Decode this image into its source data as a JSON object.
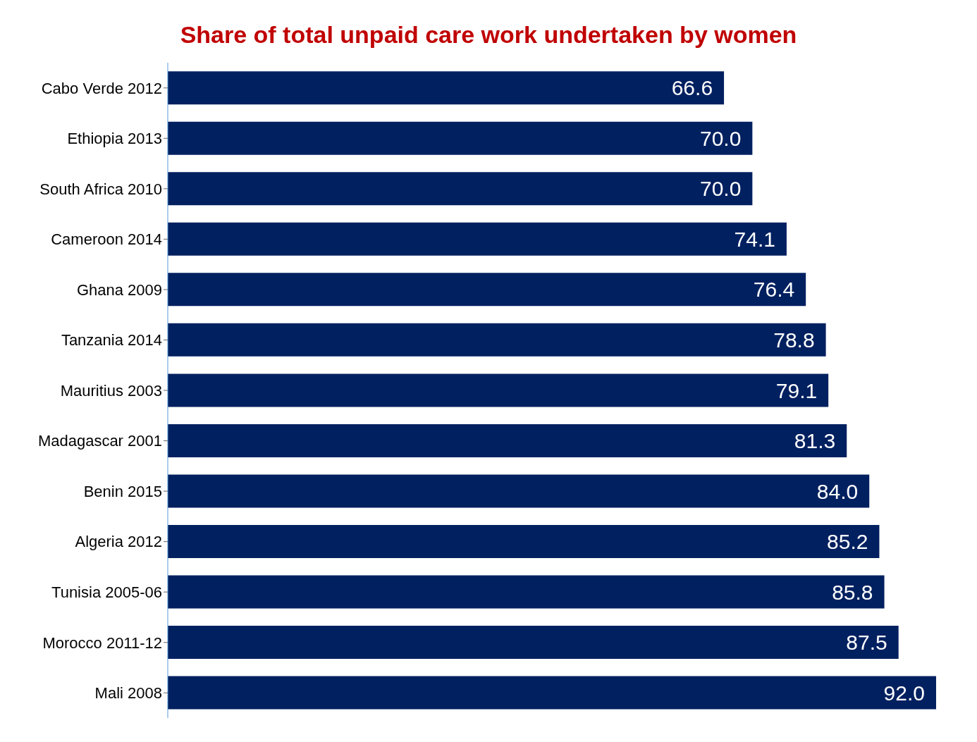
{
  "chart_data": {
    "type": "bar",
    "orientation": "horizontal",
    "title": "Share of total unpaid care work undertaken by women",
    "categories": [
      "Cabo Verde 2012",
      "Ethiopia 2013",
      "South Africa 2010",
      "Cameroon 2014",
      "Ghana 2009",
      "Tanzania 2014",
      "Mauritius 2003",
      "Madagascar 2001",
      "Benin 2015",
      "Algeria 2012",
      "Tunisia 2005-06",
      "Morocco 2011-12",
      "Mali 2008"
    ],
    "values": [
      66.6,
      70.0,
      70.0,
      74.1,
      76.4,
      78.8,
      79.1,
      81.3,
      84.0,
      85.2,
      85.8,
      87.5,
      92.0
    ],
    "value_labels": [
      "66.6",
      "70.0",
      "70.0",
      "74.1",
      "76.4",
      "78.8",
      "79.1",
      "81.3",
      "84.0",
      "85.2",
      "85.8",
      "87.5",
      "92.0"
    ],
    "color": "#002060",
    "tick_labels": "y"
  }
}
